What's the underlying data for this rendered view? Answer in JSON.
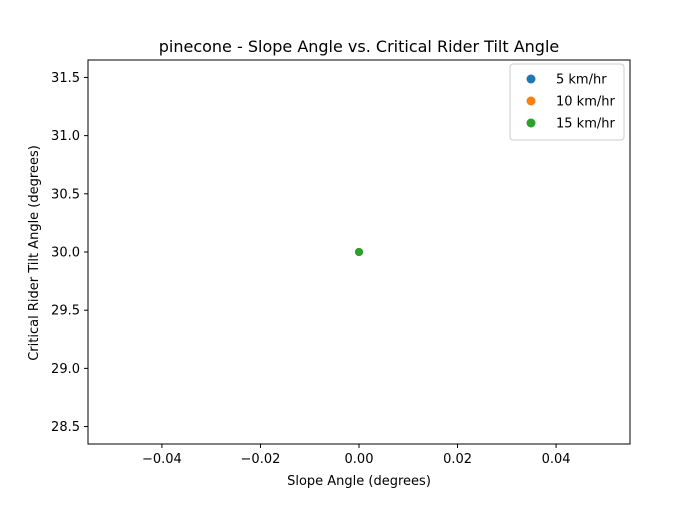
{
  "chart_data": {
    "type": "scatter",
    "title": "pinecone - Slope Angle vs. Critical Rider Tilt Angle",
    "xlabel": "Slope Angle (degrees)",
    "ylabel": "Critical Rider Tilt Angle (degrees)",
    "xlim": [
      -0.055,
      0.055
    ],
    "ylim": [
      28.35,
      31.65
    ],
    "xticks": [
      -0.04,
      -0.02,
      0.0,
      0.02,
      0.04
    ],
    "xtick_labels": [
      "−0.04",
      "−0.02",
      "0.00",
      "0.02",
      "0.04"
    ],
    "yticks": [
      28.5,
      29.0,
      29.5,
      30.0,
      30.5,
      31.0,
      31.5
    ],
    "ytick_labels": [
      "28.5",
      "29.0",
      "29.5",
      "30.0",
      "30.5",
      "31.0",
      "31.5"
    ],
    "grid": false,
    "legend_position": "top-right",
    "series": [
      {
        "name": "5 km/hr",
        "color": "#1f77b4",
        "points": [
          [
            0.0,
            30.0
          ]
        ]
      },
      {
        "name": "10 km/hr",
        "color": "#ff7f0e",
        "points": [
          [
            0.0,
            30.0
          ]
        ]
      },
      {
        "name": "15 km/hr",
        "color": "#2ca02c",
        "points": [
          [
            0.0,
            30.0
          ]
        ]
      }
    ]
  }
}
